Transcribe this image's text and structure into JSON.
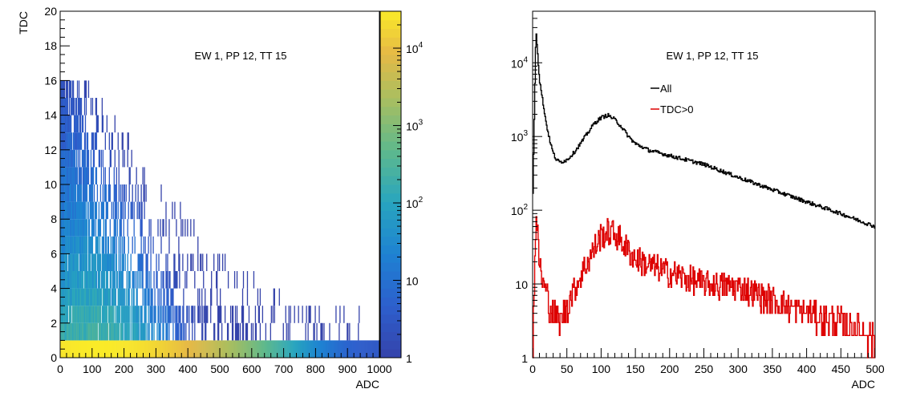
{
  "chart_data": [
    {
      "type": "heatmap",
      "annotation": "EW 1, PP 12, TT 15",
      "xlabel": "ADC",
      "ylabel": "TDC",
      "xlim": [
        0,
        1000
      ],
      "ylim": [
        0,
        20
      ],
      "x_ticks": [
        "0",
        "100",
        "200",
        "300",
        "400",
        "500",
        "600",
        "700",
        "800",
        "900",
        "1000"
      ],
      "y_ticks": [
        "0",
        "2",
        "4",
        "6",
        "8",
        "10",
        "12",
        "14",
        "16",
        "18",
        "20"
      ],
      "color_scale": "log",
      "zlim": [
        1,
        30000
      ],
      "z_ticks": [
        "1",
        "10",
        "10^2",
        "10^3",
        "10^4"
      ],
      "row_extent": [
        {
          "tdc": 0,
          "adc_max": 1000,
          "peak_count": 30000
        },
        {
          "tdc": 1,
          "adc_max": 960,
          "peak_count": 300
        },
        {
          "tdc": 2,
          "adc_max": 940,
          "peak_count": 200
        },
        {
          "tdc": 3,
          "adc_max": 700,
          "peak_count": 150
        },
        {
          "tdc": 4,
          "adc_max": 620,
          "peak_count": 100
        },
        {
          "tdc": 5,
          "adc_max": 520,
          "peak_count": 80
        },
        {
          "tdc": 6,
          "adc_max": 450,
          "peak_count": 60
        },
        {
          "tdc": 7,
          "adc_max": 420,
          "peak_count": 40
        },
        {
          "tdc": 8,
          "adc_max": 380,
          "peak_count": 30
        },
        {
          "tdc": 9,
          "adc_max": 320,
          "peak_count": 25
        },
        {
          "tdc": 10,
          "adc_max": 270,
          "peak_count": 20
        },
        {
          "tdc": 11,
          "adc_max": 230,
          "peak_count": 15
        },
        {
          "tdc": 12,
          "adc_max": 220,
          "peak_count": 10
        },
        {
          "tdc": 13,
          "adc_max": 180,
          "peak_count": 8
        },
        {
          "tdc": 14,
          "adc_max": 150,
          "peak_count": 6
        },
        {
          "tdc": 15,
          "adc_max": 110,
          "peak_count": 3
        }
      ]
    },
    {
      "type": "line",
      "annotation": "EW 1, PP 12, TT 15",
      "xlabel": "ADC",
      "ylabel": "",
      "xlim": [
        0,
        500
      ],
      "ylim": [
        1,
        50000
      ],
      "y_scale": "log",
      "x_ticks": [
        "0",
        "50",
        "100",
        "150",
        "200",
        "250",
        "300",
        "350",
        "400",
        "450",
        "500"
      ],
      "y_ticks": [
        "1",
        "10",
        "10^2",
        "10^3",
        "10^4"
      ],
      "legend_position": "top-center",
      "series": [
        {
          "name": "All",
          "color": "#000000",
          "x": [
            0,
            5,
            10,
            15,
            20,
            25,
            30,
            35,
            40,
            50,
            60,
            70,
            80,
            90,
            100,
            110,
            120,
            130,
            140,
            150,
            170,
            200,
            250,
            300,
            350,
            400,
            450,
            500
          ],
          "y": [
            100,
            30000,
            6000,
            3000,
            1500,
            900,
            600,
            480,
            450,
            480,
            600,
            800,
            1100,
            1500,
            1800,
            1950,
            1700,
            1350,
            1000,
            800,
            650,
            550,
            420,
            280,
            190,
            130,
            90,
            60
          ]
        },
        {
          "name": "TDC>0",
          "color": "#dd0000",
          "x": [
            0,
            5,
            10,
            15,
            20,
            25,
            30,
            40,
            50,
            60,
            70,
            80,
            90,
            100,
            110,
            120,
            130,
            140,
            150,
            170,
            200,
            250,
            300,
            350,
            400,
            450,
            500
          ],
          "y": [
            1,
            90,
            20,
            10,
            8,
            5,
            4,
            3,
            5,
            8,
            13,
            20,
            30,
            45,
            50,
            48,
            38,
            28,
            22,
            18,
            14,
            10,
            9,
            6,
            4,
            3,
            2
          ]
        }
      ]
    }
  ]
}
